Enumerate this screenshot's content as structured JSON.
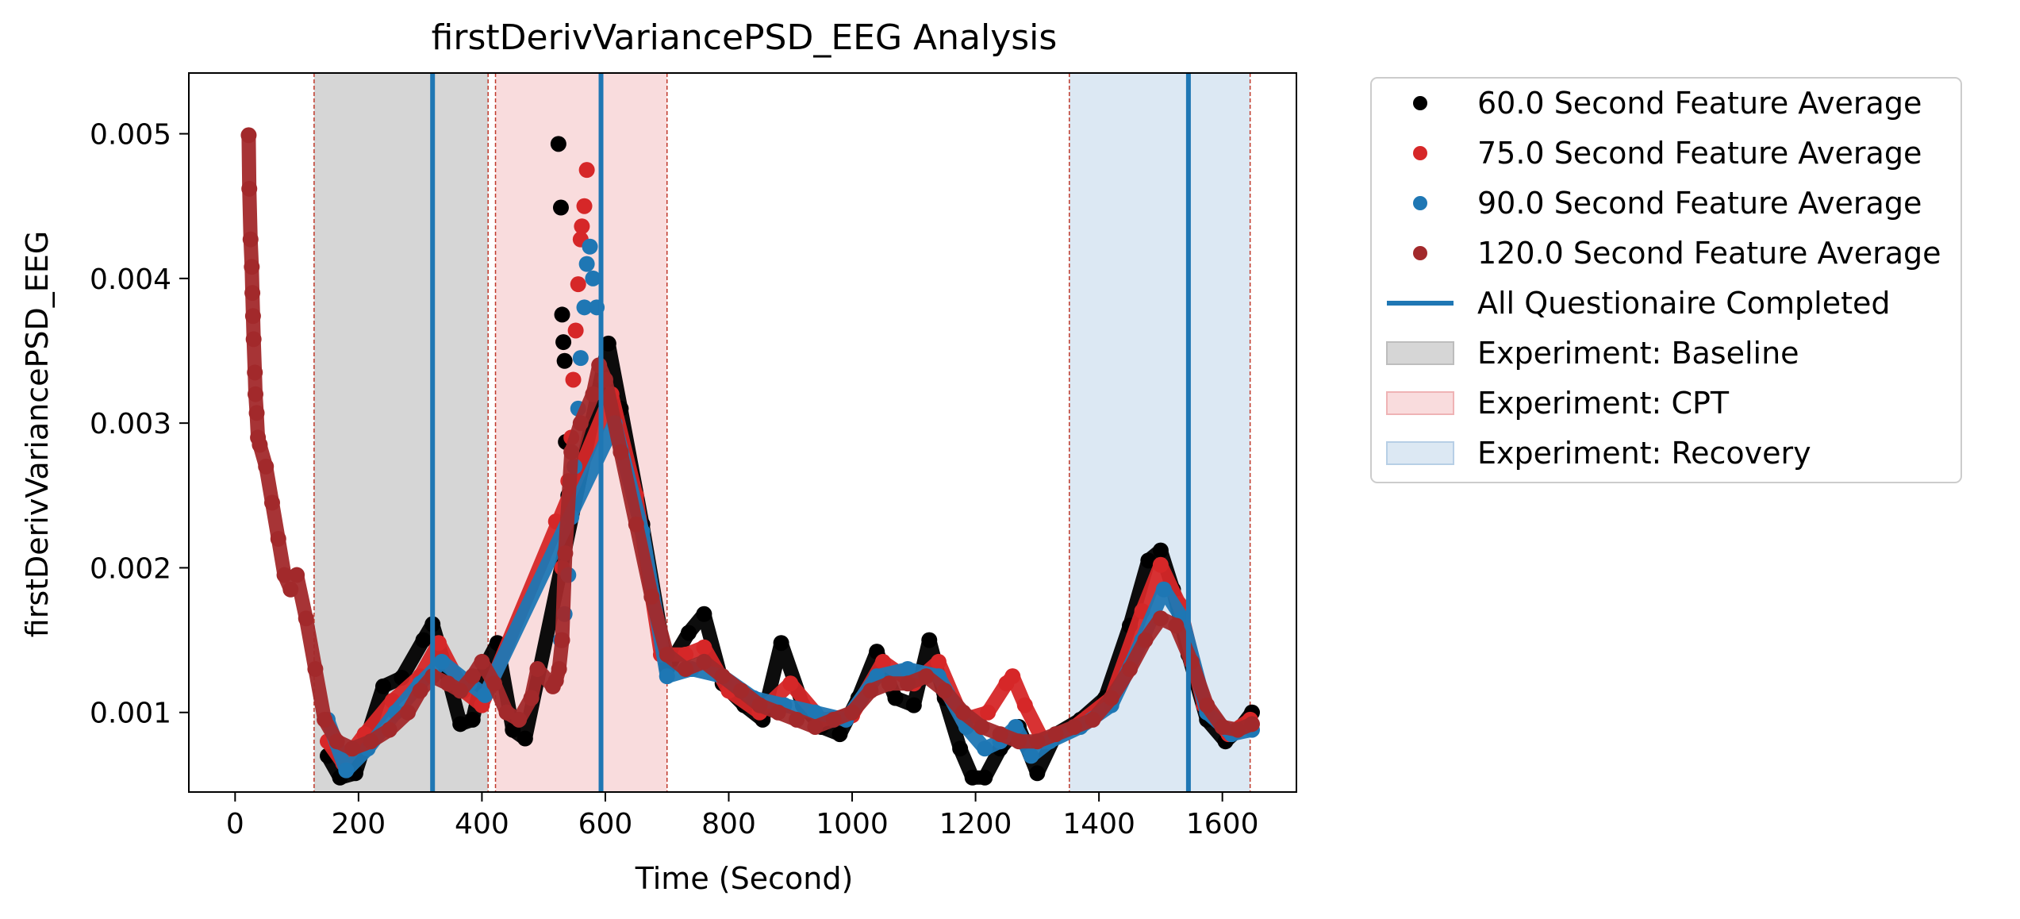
{
  "chart_data": {
    "type": "scatter",
    "title": "firstDerivVariancePSD_EEG Analysis",
    "xlabel": "Time (Second)",
    "ylabel": "firstDerivVariancePSD_EEG",
    "xlim": [
      -75,
      1720
    ],
    "ylim": [
      0.00045,
      0.00542
    ],
    "xticks": [
      0,
      200,
      400,
      600,
      800,
      1000,
      1200,
      1400,
      1600
    ],
    "xtick_labels": [
      "0",
      "200",
      "400",
      "600",
      "800",
      "1000",
      "1200",
      "1400",
      "1600"
    ],
    "yticks": [
      0.001,
      0.002,
      0.003,
      0.004,
      0.005
    ],
    "ytick_labels": [
      "0.001",
      "0.002",
      "0.003",
      "0.004",
      "0.005"
    ],
    "grid": false,
    "legend_position": "outside-right",
    "regions": [
      {
        "name": "Experiment: Baseline",
        "start": 128,
        "end": 410,
        "color": "#d6d6d6",
        "border": "#c0392b"
      },
      {
        "name": "Experiment: CPT",
        "start": 422,
        "end": 700,
        "color": "#f9dcdd",
        "border": "#c0392b"
      },
      {
        "name": "Experiment: Recovery",
        "start": 1352,
        "end": 1645,
        "color": "#dce8f3",
        "border": "#c0392b"
      }
    ],
    "vlines": {
      "name": "All Questionaire Completed",
      "x": [
        320,
        593,
        1545
      ],
      "color": "#1f77b4"
    },
    "series": [
      {
        "name": "60.0 Second Feature Average",
        "color": "#000000",
        "points": [
          [
            524,
            0.00493
          ],
          [
            528,
            0.00449
          ],
          [
            530,
            0.00375
          ],
          [
            532,
            0.00356
          ],
          [
            534,
            0.00343
          ],
          [
            536,
            0.00287
          ],
          [
            540,
            0.0025
          ],
          [
            150,
            0.0007
          ],
          [
            170,
            0.00055
          ],
          [
            195,
            0.00058
          ],
          [
            240,
            0.00118
          ],
          [
            270,
            0.00124
          ],
          [
            305,
            0.0015
          ],
          [
            320,
            0.00161
          ],
          [
            345,
            0.00125
          ],
          [
            365,
            0.00092
          ],
          [
            385,
            0.00095
          ],
          [
            405,
            0.00132
          ],
          [
            425,
            0.00148
          ],
          [
            450,
            0.00088
          ],
          [
            470,
            0.00082
          ],
          [
            605,
            0.00355
          ],
          [
            625,
            0.0031
          ],
          [
            660,
            0.0023
          ],
          [
            700,
            0.0013
          ],
          [
            735,
            0.00155
          ],
          [
            760,
            0.00168
          ],
          [
            790,
            0.0012
          ],
          [
            825,
            0.00105
          ],
          [
            855,
            0.00095
          ],
          [
            885,
            0.00148
          ],
          [
            920,
            0.00105
          ],
          [
            950,
            0.0009
          ],
          [
            980,
            0.00085
          ],
          [
            1010,
            0.0011
          ],
          [
            1040,
            0.00142
          ],
          [
            1070,
            0.0011
          ],
          [
            1100,
            0.00105
          ],
          [
            1125,
            0.0015
          ],
          [
            1150,
            0.0011
          ],
          [
            1175,
            0.00075
          ],
          [
            1195,
            0.00055
          ],
          [
            1215,
            0.00055
          ],
          [
            1240,
            0.00075
          ],
          [
            1270,
            0.0009
          ],
          [
            1300,
            0.00058
          ],
          [
            1330,
            0.00085
          ],
          [
            1370,
            0.00095
          ],
          [
            1410,
            0.0011
          ],
          [
            1450,
            0.0016
          ],
          [
            1480,
            0.00205
          ],
          [
            1500,
            0.00212
          ],
          [
            1520,
            0.00185
          ],
          [
            1545,
            0.0014
          ],
          [
            1575,
            0.00095
          ],
          [
            1605,
            0.0008
          ],
          [
            1630,
            0.0009
          ],
          [
            1648,
            0.001
          ]
        ]
      },
      {
        "name": "75.0 Second Feature Average",
        "color": "#d62728",
        "points": [
          [
            520,
            0.00232
          ],
          [
            530,
            0.002
          ],
          [
            540,
            0.0026
          ],
          [
            548,
            0.0033
          ],
          [
            552,
            0.00364
          ],
          [
            556,
            0.00396
          ],
          [
            560,
            0.00427
          ],
          [
            562,
            0.00436
          ],
          [
            566,
            0.0045
          ],
          [
            570,
            0.00475
          ],
          [
            545,
            0.0029
          ],
          [
            150,
            0.0008
          ],
          [
            175,
            0.00065
          ],
          [
            210,
            0.00085
          ],
          [
            255,
            0.00108
          ],
          [
            300,
            0.00125
          ],
          [
            330,
            0.00148
          ],
          [
            370,
            0.00115
          ],
          [
            400,
            0.00105
          ],
          [
            610,
            0.0032
          ],
          [
            650,
            0.0025
          ],
          [
            690,
            0.0014
          ],
          [
            730,
            0.0014
          ],
          [
            760,
            0.00145
          ],
          [
            800,
            0.00115
          ],
          [
            850,
            0.001
          ],
          [
            900,
            0.0012
          ],
          [
            950,
            0.00095
          ],
          [
            1000,
            0.00098
          ],
          [
            1050,
            0.00135
          ],
          [
            1100,
            0.0012
          ],
          [
            1140,
            0.00135
          ],
          [
            1180,
            0.00095
          ],
          [
            1220,
            0.001
          ],
          [
            1250,
            0.0012
          ],
          [
            1260,
            0.00125
          ],
          [
            1280,
            0.00105
          ],
          [
            1310,
            0.0008
          ],
          [
            1360,
            0.0009
          ],
          [
            1420,
            0.0011
          ],
          [
            1470,
            0.0017
          ],
          [
            1500,
            0.00202
          ],
          [
            1530,
            0.00175
          ],
          [
            1570,
            0.00105
          ],
          [
            1610,
            0.00085
          ],
          [
            1645,
            0.00095
          ]
        ]
      },
      {
        "name": "90.0 Second Feature Average",
        "color": "#1f77b4",
        "points": [
          [
            528,
            0.0015
          ],
          [
            534,
            0.00168
          ],
          [
            540,
            0.00195
          ],
          [
            545,
            0.00235
          ],
          [
            550,
            0.0027
          ],
          [
            556,
            0.0031
          ],
          [
            560,
            0.00345
          ],
          [
            566,
            0.0038
          ],
          [
            570,
            0.0041
          ],
          [
            575,
            0.00422
          ],
          [
            580,
            0.004
          ],
          [
            586,
            0.0038
          ],
          [
            150,
            0.00095
          ],
          [
            180,
            0.0006
          ],
          [
            215,
            0.00075
          ],
          [
            260,
            0.001
          ],
          [
            300,
            0.0012
          ],
          [
            335,
            0.00135
          ],
          [
            380,
            0.0012
          ],
          [
            405,
            0.00112
          ],
          [
            615,
            0.003
          ],
          [
            660,
            0.00225
          ],
          [
            700,
            0.00125
          ],
          [
            740,
            0.0013
          ],
          [
            790,
            0.00125
          ],
          [
            840,
            0.0011
          ],
          [
            890,
            0.00105
          ],
          [
            940,
            0.001
          ],
          [
            990,
            0.00095
          ],
          [
            1040,
            0.00125
          ],
          [
            1090,
            0.0013
          ],
          [
            1140,
            0.00125
          ],
          [
            1185,
            0.0009
          ],
          [
            1215,
            0.00075
          ],
          [
            1240,
            0.0008
          ],
          [
            1265,
            0.0009
          ],
          [
            1290,
            0.0007
          ],
          [
            1320,
            0.0008
          ],
          [
            1370,
            0.0009
          ],
          [
            1420,
            0.00105
          ],
          [
            1470,
            0.0015
          ],
          [
            1505,
            0.00185
          ],
          [
            1535,
            0.00165
          ],
          [
            1575,
            0.001
          ],
          [
            1615,
            0.00085
          ],
          [
            1648,
            0.00088
          ]
        ]
      },
      {
        "name": "120.0 Second Feature Average",
        "color": "#a2292b",
        "points": [
          [
            22,
            0.00499
          ],
          [
            23,
            0.00462
          ],
          [
            25,
            0.00427
          ],
          [
            27,
            0.00408
          ],
          [
            28,
            0.0039
          ],
          [
            29,
            0.00374
          ],
          [
            30,
            0.00358
          ],
          [
            32,
            0.00335
          ],
          [
            33,
            0.0032
          ],
          [
            35,
            0.00307
          ],
          [
            37,
            0.0029
          ],
          [
            40,
            0.00285
          ],
          [
            515,
            0.00118
          ],
          [
            520,
            0.00122
          ],
          [
            525,
            0.0013
          ],
          [
            530,
            0.0015
          ],
          [
            535,
            0.0021
          ],
          [
            545,
            0.0028
          ],
          [
            560,
            0.003
          ],
          [
            580,
            0.0032
          ],
          [
            590,
            0.0034
          ],
          [
            50,
            0.0027
          ],
          [
            60,
            0.00245
          ],
          [
            70,
            0.0022
          ],
          [
            80,
            0.00195
          ],
          [
            90,
            0.00185
          ],
          [
            100,
            0.00195
          ],
          [
            115,
            0.00165
          ],
          [
            130,
            0.0013
          ],
          [
            145,
            0.00095
          ],
          [
            165,
            0.0008
          ],
          [
            190,
            0.00075
          ],
          [
            220,
            0.0008
          ],
          [
            250,
            0.00088
          ],
          [
            280,
            0.001
          ],
          [
            300,
            0.00115
          ],
          [
            320,
            0.00125
          ],
          [
            345,
            0.0012
          ],
          [
            365,
            0.00115
          ],
          [
            385,
            0.00125
          ],
          [
            400,
            0.00135
          ],
          [
            420,
            0.0012
          ],
          [
            440,
            0.001
          ],
          [
            460,
            0.00095
          ],
          [
            480,
            0.0011
          ],
          [
            490,
            0.0013
          ],
          [
            600,
            0.0033
          ],
          [
            625,
            0.0028
          ],
          [
            650,
            0.0023
          ],
          [
            675,
            0.0018
          ],
          [
            700,
            0.0014
          ],
          [
            730,
            0.0013
          ],
          [
            760,
            0.00135
          ],
          [
            790,
            0.00125
          ],
          [
            820,
            0.00115
          ],
          [
            850,
            0.00105
          ],
          [
            880,
            0.001
          ],
          [
            910,
            0.00095
          ],
          [
            940,
            0.0009
          ],
          [
            970,
            0.00095
          ],
          [
            1000,
            0.001
          ],
          [
            1030,
            0.00115
          ],
          [
            1060,
            0.0012
          ],
          [
            1090,
            0.0012
          ],
          [
            1120,
            0.00125
          ],
          [
            1150,
            0.00115
          ],
          [
            1180,
            0.001
          ],
          [
            1210,
            0.0009
          ],
          [
            1240,
            0.00085
          ],
          [
            1270,
            0.0008
          ],
          [
            1300,
            0.0008
          ],
          [
            1330,
            0.00085
          ],
          [
            1360,
            0.0009
          ],
          [
            1390,
            0.00095
          ],
          [
            1420,
            0.0011
          ],
          [
            1450,
            0.0013
          ],
          [
            1475,
            0.0015
          ],
          [
            1500,
            0.00165
          ],
          [
            1525,
            0.0016
          ],
          [
            1550,
            0.00135
          ],
          [
            1575,
            0.00105
          ],
          [
            1600,
            0.0009
          ],
          [
            1625,
            0.00088
          ],
          [
            1648,
            0.00092
          ]
        ]
      }
    ],
    "legend": [
      {
        "label": "60.0 Second Feature Average",
        "kind": "marker",
        "color": "#000000"
      },
      {
        "label": "75.0 Second Feature Average",
        "kind": "marker",
        "color": "#d62728"
      },
      {
        "label": "90.0 Second Feature Average",
        "kind": "marker",
        "color": "#1f77b4"
      },
      {
        "label": "120.0 Second Feature Average",
        "kind": "marker",
        "color": "#a2292b"
      },
      {
        "label": "All Questionaire Completed",
        "kind": "line",
        "color": "#1f77b4"
      },
      {
        "label": "Experiment: Baseline",
        "kind": "patch",
        "color": "#d6d6d6",
        "border": "#bdbdbd"
      },
      {
        "label": "Experiment: CPT",
        "kind": "patch",
        "color": "#f9dcdd",
        "border": "#efb3b5"
      },
      {
        "label": "Experiment: Recovery",
        "kind": "patch",
        "color": "#dce8f3",
        "border": "#b7cfe6"
      }
    ]
  }
}
